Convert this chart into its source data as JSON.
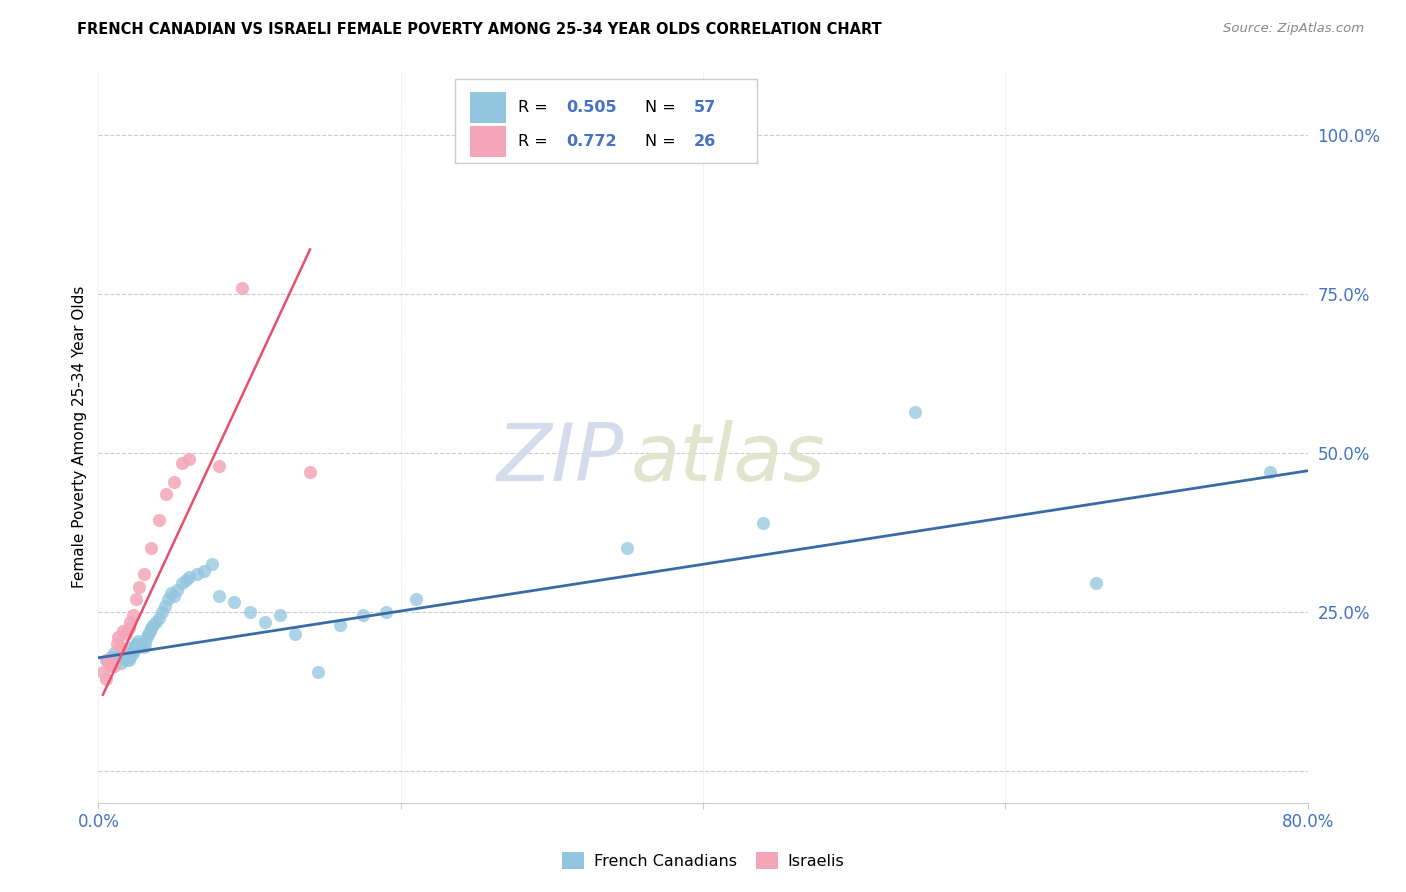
{
  "title": "FRENCH CANADIAN VS ISRAELI FEMALE POVERTY AMONG 25-34 YEAR OLDS CORRELATION CHART",
  "source": "Source: ZipAtlas.com",
  "ylabel": "Female Poverty Among 25-34 Year Olds",
  "xlim": [
    0.0,
    0.8
  ],
  "ylim": [
    -0.05,
    1.1
  ],
  "xticks": [
    0.0,
    0.2,
    0.4,
    0.6,
    0.8
  ],
  "xticklabels": [
    "0.0%",
    "",
    "",
    "",
    "80.0%"
  ],
  "yticks": [
    0.0,
    0.25,
    0.5,
    0.75,
    1.0
  ],
  "yticklabels": [
    "",
    "25.0%",
    "50.0%",
    "75.0%",
    "100.0%"
  ],
  "blue_color": "#92c5de",
  "blue_line_color": "#3b6ba5",
  "pink_color": "#f4a6b8",
  "pink_line_color": "#e8506a",
  "text_blue": "#4472c4",
  "legend_r_blue": "0.505",
  "legend_n_blue": "57",
  "legend_r_pink": "0.772",
  "legend_n_pink": "26",
  "watermark_zip": "ZIP",
  "watermark_atlas": "atlas",
  "blue_scatter_x": [
    0.005,
    0.008,
    0.01,
    0.01,
    0.012,
    0.013,
    0.015,
    0.016,
    0.018,
    0.019,
    0.02,
    0.021,
    0.022,
    0.022,
    0.023,
    0.024,
    0.025,
    0.026,
    0.027,
    0.028,
    0.03,
    0.031,
    0.032,
    0.033,
    0.034,
    0.035,
    0.036,
    0.038,
    0.04,
    0.042,
    0.044,
    0.046,
    0.048,
    0.05,
    0.052,
    0.055,
    0.058,
    0.06,
    0.065,
    0.07,
    0.075,
    0.08,
    0.09,
    0.1,
    0.11,
    0.12,
    0.13,
    0.145,
    0.16,
    0.175,
    0.19,
    0.21,
    0.35,
    0.44,
    0.54,
    0.66,
    0.775
  ],
  "blue_scatter_y": [
    0.175,
    0.18,
    0.17,
    0.185,
    0.175,
    0.18,
    0.17,
    0.18,
    0.175,
    0.185,
    0.175,
    0.18,
    0.185,
    0.195,
    0.185,
    0.195,
    0.2,
    0.205,
    0.195,
    0.2,
    0.195,
    0.2,
    0.21,
    0.215,
    0.22,
    0.225,
    0.23,
    0.235,
    0.24,
    0.25,
    0.26,
    0.27,
    0.28,
    0.275,
    0.285,
    0.295,
    0.3,
    0.305,
    0.31,
    0.315,
    0.325,
    0.275,
    0.265,
    0.25,
    0.235,
    0.245,
    0.215,
    0.155,
    0.23,
    0.245,
    0.25,
    0.27,
    0.35,
    0.39,
    0.565,
    0.295,
    0.47
  ],
  "pink_scatter_x": [
    0.003,
    0.005,
    0.006,
    0.008,
    0.009,
    0.01,
    0.012,
    0.013,
    0.015,
    0.016,
    0.018,
    0.02,
    0.021,
    0.023,
    0.025,
    0.027,
    0.03,
    0.035,
    0.04,
    0.045,
    0.05,
    0.055,
    0.06,
    0.08,
    0.095,
    0.14
  ],
  "pink_scatter_y": [
    0.155,
    0.145,
    0.175,
    0.165,
    0.17,
    0.165,
    0.2,
    0.21,
    0.195,
    0.22,
    0.215,
    0.225,
    0.235,
    0.245,
    0.27,
    0.29,
    0.31,
    0.35,
    0.395,
    0.435,
    0.455,
    0.485,
    0.49,
    0.48,
    0.76,
    0.47
  ],
  "blue_trend_x": [
    0.0,
    0.8
  ],
  "blue_trend_y": [
    0.178,
    0.472
  ],
  "pink_trend_x": [
    0.003,
    0.14
  ],
  "pink_trend_y": [
    0.12,
    0.82
  ]
}
